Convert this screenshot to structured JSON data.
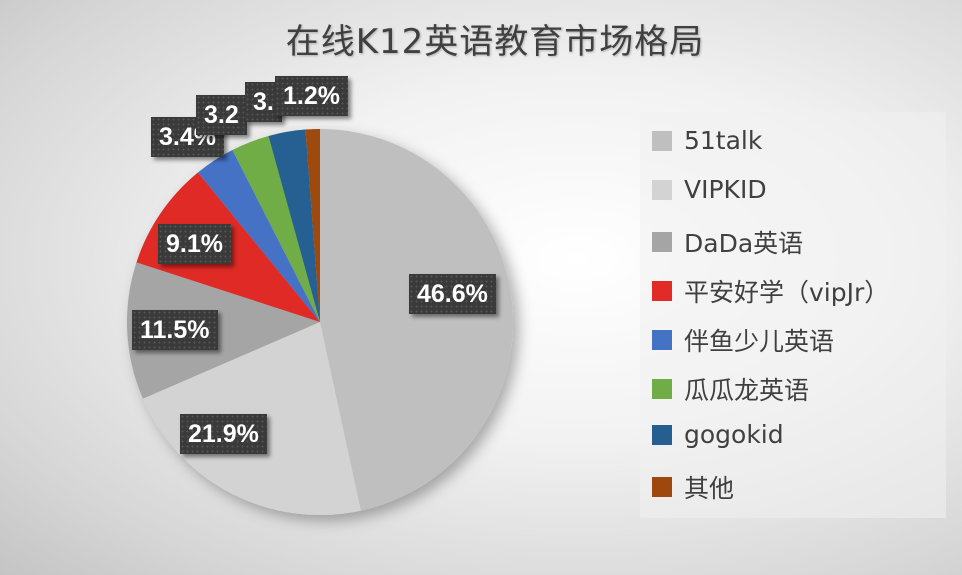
{
  "title": "在线K12英语教育市场格局",
  "chart_data": {
    "type": "pie",
    "title": "在线K12英语教育市场格局",
    "categories": [
      "51talk",
      "VIPKID",
      "DaDa英语",
      "平安好学（vipJr）",
      "伴鱼少儿英语",
      "瓜瓜龙英语",
      "gogokid",
      "其他"
    ],
    "values": [
      46.6,
      21.9,
      11.5,
      9.1,
      3.4,
      3.2,
      3.1,
      1.2
    ],
    "unit": "%",
    "colors": [
      "#bfbfbf",
      "#d3d3d3",
      "#a5a5a5",
      "#e02b27",
      "#4472c4",
      "#70ad47",
      "#255e91",
      "#9e480e"
    ],
    "data_labels": [
      "46.6%",
      "21.9%",
      "11.5%",
      "9.1%",
      "3.4%",
      "3.2",
      "3.",
      "1.2%"
    ],
    "legend_position": "right",
    "start_angle": "12 o'clock, clockwise"
  },
  "legend": [
    {
      "label": "51talk",
      "color": "#bfbfbf"
    },
    {
      "label": "VIPKID",
      "color": "#d3d3d3"
    },
    {
      "label": "DaDa英语",
      "color": "#a5a5a5"
    },
    {
      "label": "平安好学（vipJr）",
      "color": "#e02b27"
    },
    {
      "label": "伴鱼少儿英语",
      "color": "#4472c4"
    },
    {
      "label": "瓜瓜龙英语",
      "color": "#70ad47"
    },
    {
      "label": "gogokid",
      "color": "#255e91"
    },
    {
      "label": "其他",
      "color": "#9e480e"
    }
  ],
  "labels": {
    "l0": "46.6%",
    "l1": "21.9%",
    "l2": "11.5%",
    "l3": "9.1%",
    "l4": "3.4%",
    "l5": "3.2",
    "l6": "3.",
    "l7": "1.2%"
  }
}
